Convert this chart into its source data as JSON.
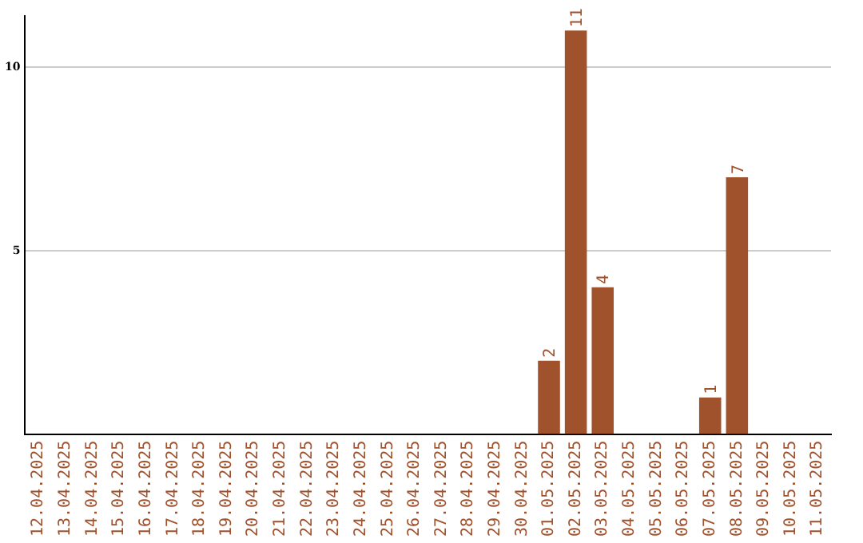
{
  "chart_data": {
    "type": "bar",
    "categories": [
      "12.04.2025",
      "13.04.2025",
      "14.04.2025",
      "15.04.2025",
      "16.04.2025",
      "17.04.2025",
      "18.04.2025",
      "19.04.2025",
      "20.04.2025",
      "21.04.2025",
      "22.04.2025",
      "23.04.2025",
      "24.04.2025",
      "25.04.2025",
      "26.04.2025",
      "27.04.2025",
      "28.04.2025",
      "29.04.2025",
      "30.04.2025",
      "01.05.2025",
      "02.05.2025",
      "03.05.2025",
      "04.05.2025",
      "05.05.2025",
      "06.05.2025",
      "07.05.2025",
      "08.05.2025",
      "09.05.2025",
      "10.05.2025",
      "11.05.2025"
    ],
    "values": [
      0,
      0,
      0,
      0,
      0,
      0,
      0,
      0,
      0,
      0,
      0,
      0,
      0,
      0,
      0,
      0,
      0,
      0,
      0,
      2,
      11,
      4,
      0,
      0,
      0,
      1,
      7,
      0,
      0,
      0
    ],
    "value_labels": [
      null,
      null,
      null,
      null,
      null,
      null,
      null,
      null,
      null,
      null,
      null,
      null,
      null,
      null,
      null,
      null,
      null,
      null,
      null,
      "2",
      "11",
      "4",
      null,
      null,
      null,
      "1",
      "7",
      null,
      null,
      null
    ],
    "color": "#a0522d",
    "ylim": [
      0,
      11.4
    ],
    "yticks": [
      5,
      10
    ],
    "grid": "y",
    "legend": false
  }
}
